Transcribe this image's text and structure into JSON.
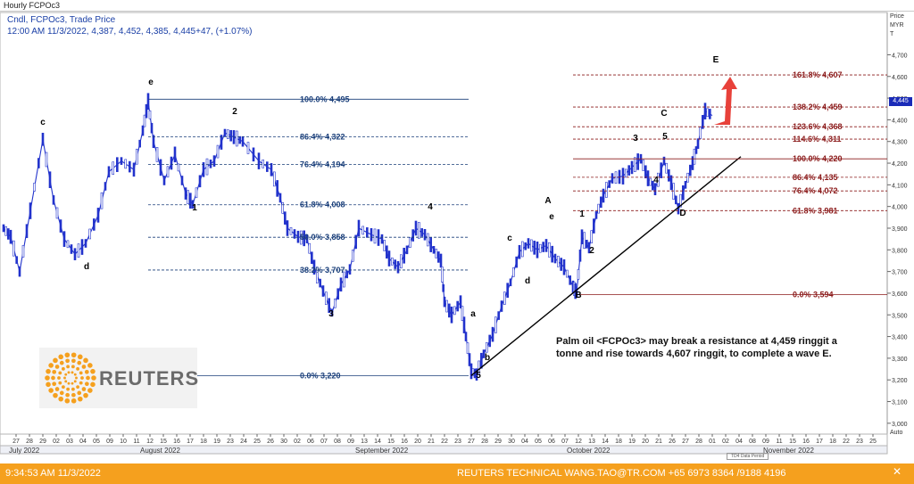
{
  "window_title": "Hourly FCPOc3",
  "header": {
    "line1": "Cndl, FCPOc3, Trade Price",
    "line2": "12:00 AM 11/3/2022, 4,387, 4,452, 4,385, 4,445+47, (+1.07%)"
  },
  "price_axis": {
    "head1": "Price",
    "head2": "MYR",
    "head3": "T",
    "auto": "Auto",
    "current_tag": "4,445"
  },
  "colors": {
    "candle": "#2233cc",
    "fib_left": "#1a3f7a",
    "fib_right": "#8b1a1a",
    "arrow": "#e8413a",
    "footer": "#f5a01e"
  },
  "chart_data": {
    "type": "candlestick",
    "ylim": [
      2950,
      4780
    ],
    "y_ticks": [
      3000,
      3100,
      3200,
      3300,
      3400,
      3500,
      3600,
      3700,
      3800,
      3900,
      4000,
      4100,
      4200,
      4300,
      4400,
      4500,
      4600,
      4700
    ],
    "y_tick_labels": [
      "3,000",
      "3,100",
      "3,200",
      "3,300",
      "3,400",
      "3,500",
      "3,600",
      "3,700",
      "3,800",
      "3,900",
      "4,000",
      "4,100",
      "4,200",
      "4,300",
      "4,400",
      "4,500",
      "4,600",
      "4,700"
    ],
    "x_labels": [
      "27",
      "28",
      "29",
      "02",
      "03",
      "04",
      "05",
      "09",
      "10",
      "11",
      "12",
      "15",
      "16",
      "17",
      "18",
      "19",
      "23",
      "24",
      "25",
      "26",
      "30",
      "02",
      "06",
      "07",
      "08",
      "09",
      "13",
      "14",
      "15",
      "16",
      "20",
      "21",
      "22",
      "23",
      "27",
      "28",
      "29",
      "30",
      "04",
      "05",
      "06",
      "07",
      "12",
      "13",
      "14",
      "18",
      "19",
      "20",
      "21",
      "26",
      "27",
      "28",
      "01",
      "02",
      "04",
      "08",
      "09",
      "11",
      "15",
      "16",
      "17",
      "18",
      "22",
      "23",
      "25"
    ],
    "months": [
      "July 2022",
      "August 2022",
      "September 2022",
      "October 2022",
      "November 2022"
    ],
    "left_fib": [
      {
        "label": "100.0%",
        "value": 4495,
        "text": "4,495"
      },
      {
        "label": "86.4%",
        "value": 4322,
        "text": "4,322"
      },
      {
        "label": "76.4%",
        "value": 4194,
        "text": "4,194"
      },
      {
        "label": "61.8%",
        "value": 4008,
        "text": "4,008"
      },
      {
        "label": "50.0%",
        "value": 3858,
        "text": "3,858"
      },
      {
        "label": "38.2%",
        "value": 3707,
        "text": "3,707"
      },
      {
        "label": "0.0%",
        "value": 3220,
        "text": "3,220"
      }
    ],
    "right_fib": [
      {
        "label": "161.8%",
        "value": 4607,
        "text": "4,607"
      },
      {
        "label": "138.2%",
        "value": 4459,
        "text": "4,459"
      },
      {
        "label": "123.6%",
        "value": 4368,
        "text": "4,368"
      },
      {
        "label": "114.6%",
        "value": 4311,
        "text": "4,311"
      },
      {
        "label": "100.0%",
        "value": 4220,
        "text": "4,220"
      },
      {
        "label": "86.4%",
        "value": 4135,
        "text": "4,135"
      },
      {
        "label": "76.4%",
        "value": 4072,
        "text": "4,072"
      },
      {
        "label": "61.8%",
        "value": 3981,
        "text": "3,981"
      },
      {
        "label": "0.0%",
        "value": 3594,
        "text": "3,594"
      }
    ],
    "waves": [
      "c",
      "d",
      "e",
      "1",
      "2",
      "3",
      "4",
      "5",
      "a",
      "b",
      "c",
      "d",
      "e",
      "A",
      "B",
      "1",
      "2",
      "3",
      "4",
      "5",
      "C",
      "D",
      "E"
    ]
  },
  "annotation": "Palm oil <FCPOc3> may break a resistance at 4,459 ringgit a tonne and rise towards 4,607 ringgit, to complete a wave E.",
  "logo_text": "REUTERS",
  "data_period": "TD4 Data Period",
  "footer": {
    "time": "9:34:53 AM 11/3/2022",
    "contact": "REUTERS TECHNICAL  WANG.TAO@TR.COM  +65 6973 8364 /9188 4196",
    "close": "✕"
  }
}
